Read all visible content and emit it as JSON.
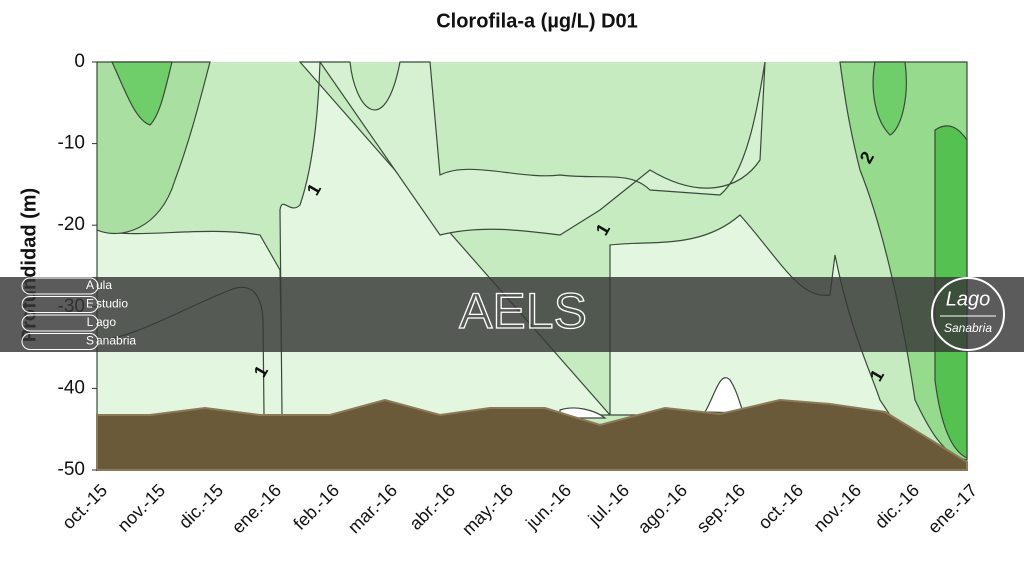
{
  "chart_data": {
    "type": "contour",
    "title": "Clorofila-a (µg/L) D01",
    "y_label": "Profundidad (m)",
    "categories": [
      "oct.-15",
      "nov.-15",
      "dic.-15",
      "ene.-16",
      "feb.-16",
      "mar.-16",
      "abr.-16",
      "may.-16",
      "jun.-16",
      "jul.-16",
      "ago.-16",
      "sep.-16",
      "oct.-16",
      "nov.-16",
      "dic.-16",
      "ene.-17"
    ],
    "ylim": [
      -50,
      0
    ],
    "yticks": [
      0,
      -10,
      -20,
      -30,
      -40,
      -50
    ],
    "contour_labels": [
      1,
      1,
      1,
      1,
      2
    ]
  },
  "overlay": {
    "text": "AELS",
    "acronym": [
      {
        "initial": "A",
        "rest": "ula"
      },
      {
        "initial": "E",
        "rest": "studio"
      },
      {
        "initial": "L",
        "rest": "ago"
      },
      {
        "initial": "S",
        "rest": "anabria"
      }
    ],
    "logo": [
      "Lago",
      "Sanabria"
    ]
  }
}
